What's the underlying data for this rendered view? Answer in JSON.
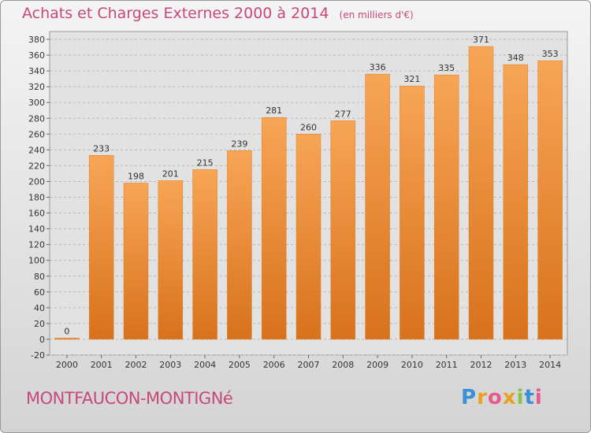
{
  "chart_data": {
    "type": "bar",
    "title": "Achats et Charges Externes 2000 à 2014",
    "subtitle": "(en milliers d'€)",
    "categories": [
      "2000",
      "2001",
      "2002",
      "2003",
      "2004",
      "2005",
      "2006",
      "2007",
      "2008",
      "2009",
      "2010",
      "2011",
      "2012",
      "2013",
      "2014"
    ],
    "values": [
      0,
      233,
      198,
      201,
      215,
      239,
      281,
      260,
      277,
      336,
      321,
      335,
      371,
      348,
      353
    ],
    "ylim": [
      -20,
      380
    ],
    "ytick_step": 20,
    "xlabel": "",
    "ylabel": "",
    "grid": true,
    "bar_color": "#f0923a"
  },
  "commune": "MONTFAUCON-MONTIGNé",
  "logo": {
    "text": "Proxiti"
  },
  "colors": {
    "accent": "#c8487a",
    "bar": "#f0923a"
  }
}
